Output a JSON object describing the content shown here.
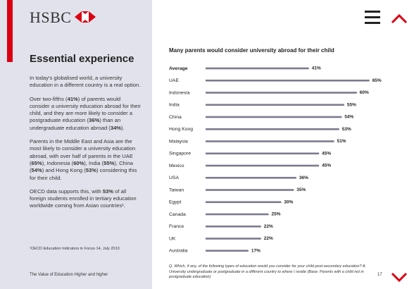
{
  "header": {
    "logo_text": "HSBC"
  },
  "sidebar": {
    "title": "Essential experience",
    "paragraphs": [
      {
        "runs": [
          {
            "text": "In today's globalised world, a university education in a different country is a real option."
          }
        ]
      },
      {
        "runs": [
          {
            "text": "Over two-fifths ("
          },
          {
            "text": "41%",
            "bold": true
          },
          {
            "text": ") of parents would consider a university education abroad for their child, and they are more likely to consider a postgraduate education ("
          },
          {
            "text": "36%",
            "bold": true
          },
          {
            "text": ") than an undergraduate education abroad ("
          },
          {
            "text": "34%",
            "bold": true
          },
          {
            "text": ")."
          }
        ]
      },
      {
        "runs": [
          {
            "text": "Parents in the Middle East and Asia are the most likely to consider a university education abroad, with over half of parents in the UAE ("
          },
          {
            "text": "65%",
            "bold": true
          },
          {
            "text": "), Indonesia ("
          },
          {
            "text": "60%",
            "bold": true
          },
          {
            "text": "), India ("
          },
          {
            "text": "55%",
            "bold": true
          },
          {
            "text": "), China ("
          },
          {
            "text": "54%",
            "bold": true
          },
          {
            "text": ") and Hong Kong ("
          },
          {
            "text": "53%",
            "bold": true
          },
          {
            "text": ") considering this for their child."
          }
        ]
      },
      {
        "runs": [
          {
            "text": "OECD data supports this, with "
          },
          {
            "text": "53%",
            "bold": true
          },
          {
            "text": " of all foreign students enrolled in tertiary education worldwide coming from Asian countries¹."
          }
        ]
      }
    ],
    "footnote": "¹OECD Education Indicators in Focus 14, July 2013"
  },
  "footer": {
    "runs": [
      {
        "text": "The Value of Education "
      },
      {
        "text": "Higher and higher",
        "italic": true
      }
    ],
    "page_number": "17"
  },
  "chart_data": {
    "type": "bar",
    "orientation": "horizontal",
    "title": "Many parents would consider university abroad for their child",
    "categories": [
      "Average",
      "UAE",
      "Indonesia",
      "India",
      "China",
      "Hong Kong",
      "Malaysia",
      "Singapore",
      "Mexico",
      "USA",
      "Taiwan",
      "Egypt",
      "Canada",
      "France",
      "UK",
      "Australia"
    ],
    "values": [
      41,
      65,
      60,
      55,
      54,
      53,
      51,
      45,
      45,
      36,
      35,
      30,
      25,
      22,
      22,
      17
    ],
    "value_labels": [
      "41%",
      "65%",
      "60%",
      "55%",
      "54%",
      "53%",
      "51%",
      "45%",
      "45%",
      "36%",
      "35%",
      "30%",
      "25%",
      "22%",
      "22%",
      "17%"
    ],
    "color": "#7b7b8e",
    "note": "Q. Which, if any, of the following types of education would you consider for your child post-secondary education? A. University undergraduate or postgraduate in a different country to where I reside (Base: Parents with a child not in postgraduate education)"
  }
}
